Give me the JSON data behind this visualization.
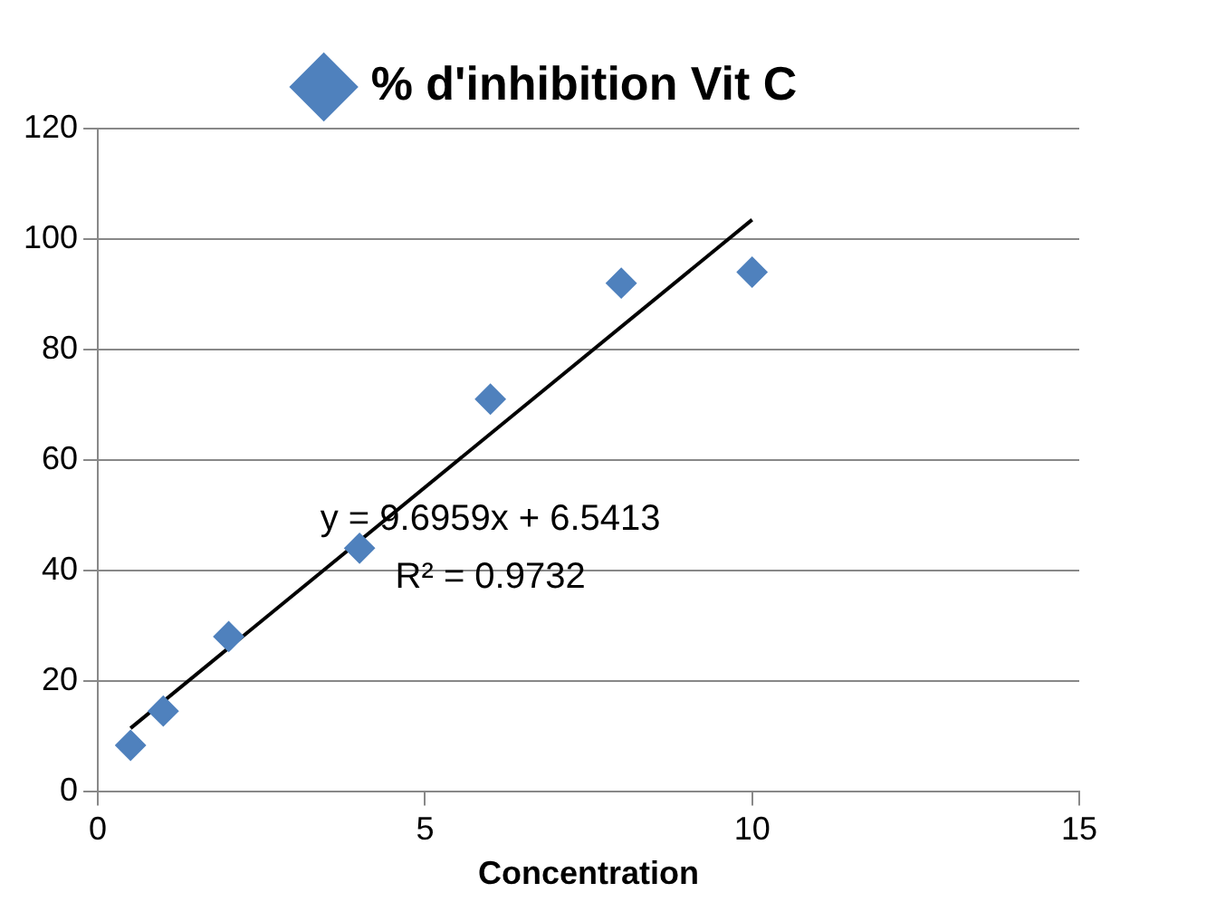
{
  "chart_data": {
    "type": "scatter",
    "xlabel": "Concentration",
    "xlim": [
      0,
      15
    ],
    "xticks": [
      0,
      5,
      10,
      15
    ],
    "ylim": [
      0,
      120
    ],
    "yticks": [
      0,
      20,
      40,
      60,
      80,
      100,
      120
    ],
    "grid": "y",
    "legend": "top",
    "marker": "diamond",
    "series": [
      {
        "name": "% d'inhibition Vit C",
        "color": "#4f81bd",
        "x": [
          0.5,
          1,
          2,
          4,
          6,
          8,
          10
        ],
        "values": [
          8.3,
          14.5,
          28,
          44,
          71,
          92,
          94
        ]
      },
      {
        "type": "line",
        "color": "#000000",
        "x": [
          0.5,
          10
        ],
        "values": [
          11.4,
          103.5
        ],
        "marker": "none"
      }
    ],
    "annotations": [
      "y = 9.6959x + 6.5413",
      "R² = 0.9732"
    ]
  }
}
